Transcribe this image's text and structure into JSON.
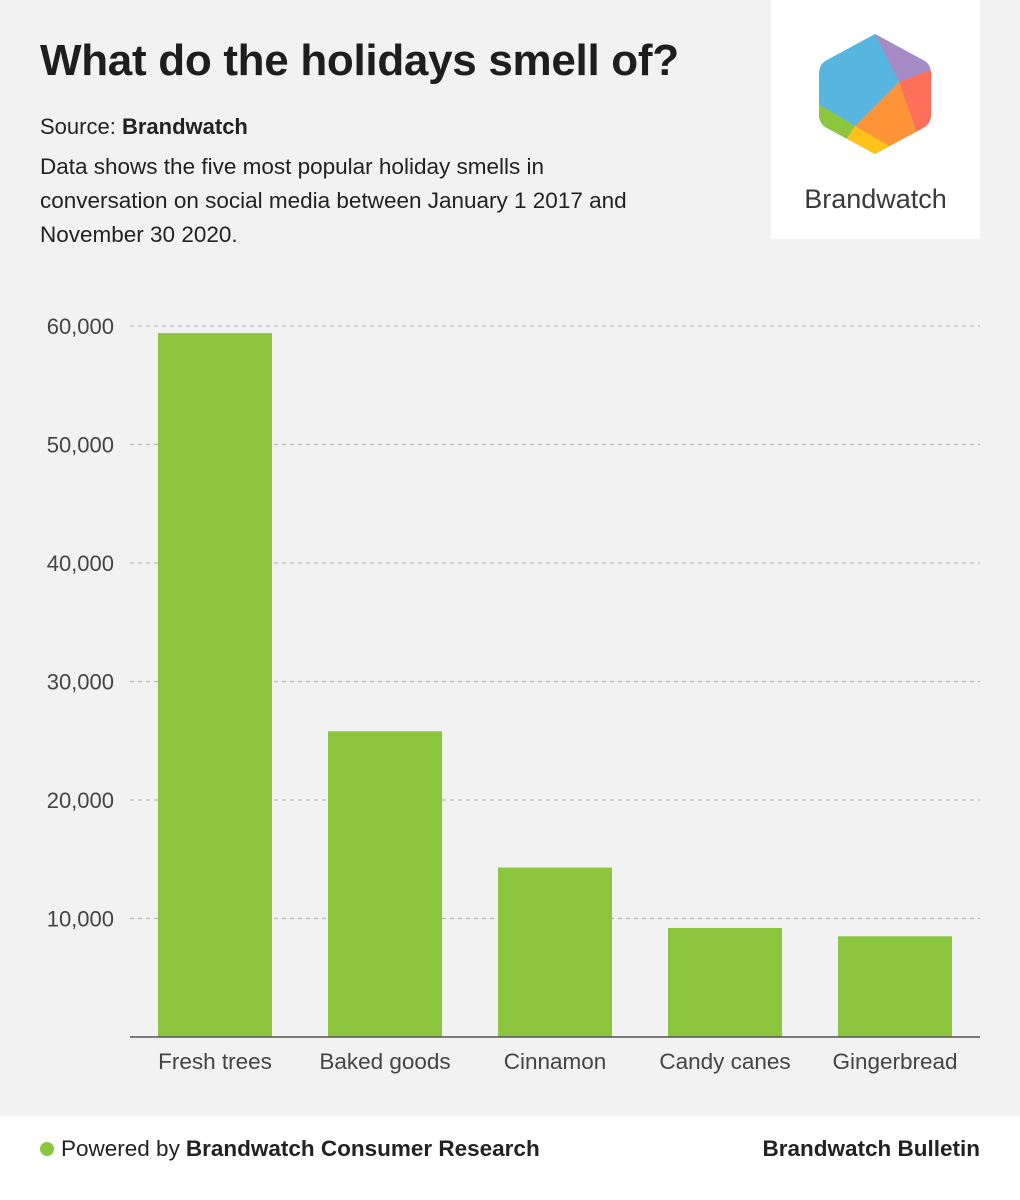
{
  "header": {
    "title": "What do the holidays smell of?",
    "source_label": "Source:",
    "source_name": "Brandwatch",
    "description": "Data shows the five most popular holiday smells in conversation on social media between January 1 2017 and November 30 2020."
  },
  "logo": {
    "wordmark": "Brandwatch",
    "icon": "brandwatch-hexagon-icon"
  },
  "chart_data": {
    "type": "bar",
    "title": "What do the holidays smell of?",
    "categories": [
      "Fresh trees",
      "Baked goods",
      "Cinnamon",
      "Candy canes",
      "Gingerbread"
    ],
    "values": [
      59400,
      25800,
      14300,
      9200,
      8500
    ],
    "ylim": [
      0,
      60000
    ],
    "yticks": [
      10000,
      20000,
      30000,
      40000,
      50000,
      60000
    ],
    "ytick_labels": [
      "10,000",
      "20,000",
      "30,000",
      "40,000",
      "50,000",
      "60,000"
    ],
    "xlabel": "",
    "ylabel": "",
    "grid": true,
    "bar_color": "#8cc63f"
  },
  "footer": {
    "powered_prefix": "Powered by",
    "powered_name": "Brandwatch Consumer Research",
    "right_label": "Brandwatch Bulletin",
    "dot_color": "#8cc63f"
  }
}
